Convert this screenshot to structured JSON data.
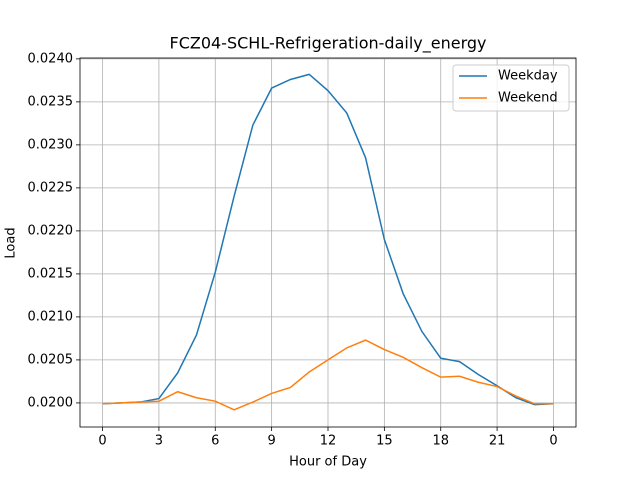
{
  "chart_data": {
    "type": "line",
    "title": "FCZ04-SCHL-Refrigeration-daily_energy",
    "x_label": "Hour of Day",
    "y_label": "Load",
    "x": [
      0,
      1,
      2,
      3,
      4,
      5,
      6,
      7,
      8,
      9,
      10,
      11,
      12,
      13,
      14,
      15,
      16,
      17,
      18,
      19,
      20,
      21,
      22,
      23,
      24
    ],
    "series": [
      {
        "name": "Weekday",
        "color": "#1f77b4",
        "values": [
          0.01999,
          0.02,
          0.02001,
          0.02005,
          0.02035,
          0.02079,
          0.02152,
          0.0224,
          0.02323,
          0.02366,
          0.02376,
          0.02382,
          0.02363,
          0.02337,
          0.02285,
          0.0219,
          0.02127,
          0.02083,
          0.02052,
          0.02048,
          0.02033,
          0.0202,
          0.02006,
          0.01998,
          0.01999
        ]
      },
      {
        "name": "Weekend",
        "color": "#ff7f0e",
        "values": [
          0.01999,
          0.02,
          0.02001,
          0.02002,
          0.02013,
          0.02006,
          0.02002,
          0.01992,
          0.02001,
          0.02011,
          0.02018,
          0.02036,
          0.0205,
          0.02064,
          0.02073,
          0.02062,
          0.02053,
          0.02041,
          0.0203,
          0.02031,
          0.02024,
          0.02019,
          0.02008,
          0.01999,
          0.01999
        ]
      }
    ],
    "xlim": [
      -1.2,
      25.2
    ],
    "xticks": [
      0,
      3,
      6,
      9,
      12,
      15,
      18,
      21,
      {
        "value": 24,
        "label": "0"
      }
    ],
    "ylim": [
      0.01972,
      0.02401
    ],
    "yticks": [
      {
        "value": 0.02,
        "label": "0.0200"
      },
      {
        "value": 0.0205,
        "label": "0.0205"
      },
      {
        "value": 0.021,
        "label": "0.0210"
      },
      {
        "value": 0.0215,
        "label": "0.0215"
      },
      {
        "value": 0.022,
        "label": "0.0220"
      },
      {
        "value": 0.0225,
        "label": "0.0225"
      },
      {
        "value": 0.023,
        "label": "0.0230"
      },
      {
        "value": 0.0235,
        "label": "0.0235"
      },
      {
        "value": 0.024,
        "label": "0.0240"
      }
    ],
    "grid": true,
    "legend": "upper right"
  }
}
